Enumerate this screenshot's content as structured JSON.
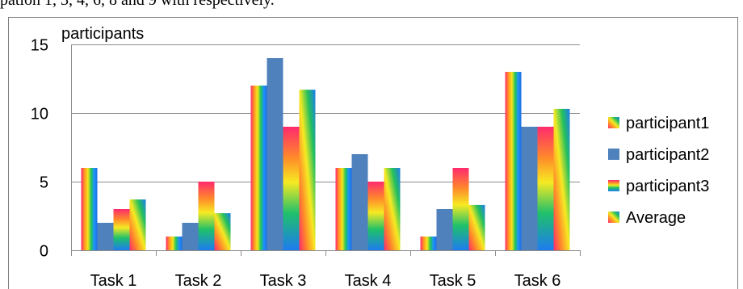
{
  "page": {
    "top_text": "pation 1, 3, 4, 6, 8 and 9 with respectively."
  },
  "chart_data": {
    "type": "bar",
    "title": "participants",
    "categories": [
      "Task 1",
      "Task 2",
      "Task 3",
      "Task 4",
      "Task 5",
      "Task 6"
    ],
    "ylim": [
      0,
      15
    ],
    "yticks": [
      0,
      5,
      10,
      15
    ],
    "grid": true,
    "legend_position": "right",
    "series": [
      {
        "name": "participant1",
        "values": [
          6,
          1,
          12,
          6,
          1,
          13
        ],
        "style": "rainbow-horizontal"
      },
      {
        "name": "participant2",
        "values": [
          2,
          2,
          14,
          7,
          3,
          9
        ],
        "style": "solid",
        "color": "#4f81bd"
      },
      {
        "name": "participant3",
        "values": [
          3,
          5,
          9,
          5,
          6,
          9
        ],
        "style": "rainbow-vertical"
      },
      {
        "name": "Average",
        "values": [
          3.7,
          2.7,
          11.7,
          6,
          3.3,
          10.3
        ],
        "style": "rainbow-diagonal"
      }
    ]
  }
}
